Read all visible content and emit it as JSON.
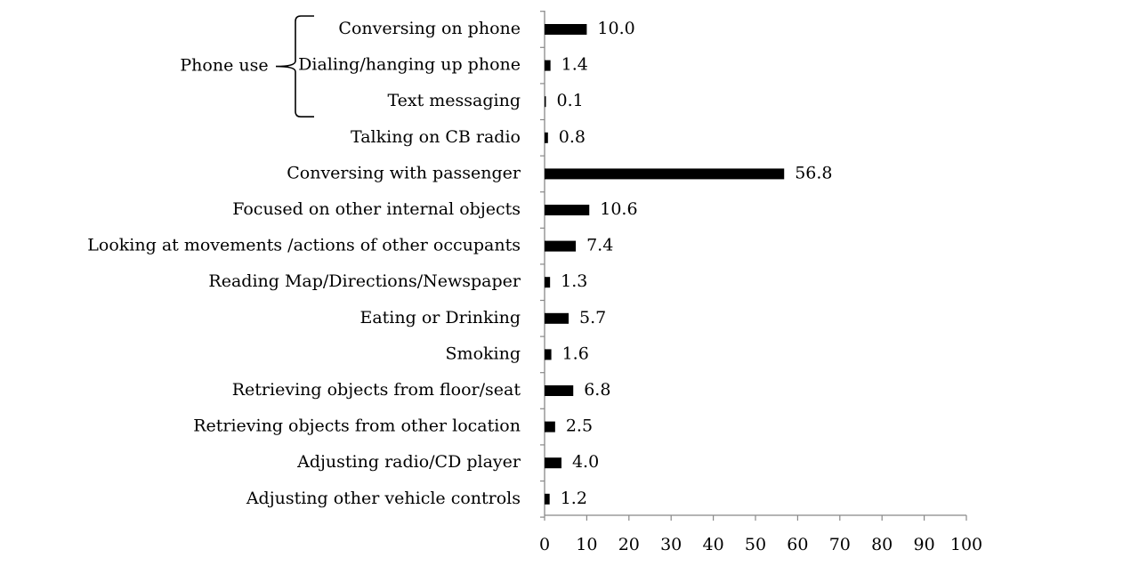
{
  "chart_data": {
    "type": "bar",
    "orientation": "horizontal",
    "categories": [
      "Conversing on phone",
      "Dialing/hanging up phone",
      "Text messaging",
      "Talking on  CB radio",
      "Conversing with passenger",
      "Focused on other internal objects",
      "Looking at movements /actions of other occupants",
      "Reading Map/Directions/Newspaper",
      "Eating or Drinking",
      "Smoking",
      "Retrieving objects from floor/seat",
      "Retrieving objects from other location",
      "Adjusting radio/CD player",
      "Adjusting other vehicle controls"
    ],
    "values": [
      10.0,
      1.4,
      0.1,
      0.8,
      56.8,
      10.6,
      7.4,
      1.3,
      5.7,
      1.6,
      6.8,
      2.5,
      4.0,
      1.2
    ],
    "value_labels": [
      "10.0",
      "1.4",
      "0.1",
      "0.8",
      "56.8",
      "10.6",
      "7.4",
      "1.3",
      "5.7",
      "1.6",
      "6.8",
      "2.5",
      "4.0",
      "1.2"
    ],
    "group_annotation": {
      "label": "Phone use",
      "categories": [
        "Conversing on phone",
        "Dialing/hanging up phone",
        "Text messaging"
      ]
    },
    "xlim": [
      0,
      100
    ],
    "xticks": [
      0,
      10,
      20,
      30,
      40,
      50,
      60,
      70,
      80,
      90,
      100
    ],
    "title": "",
    "xlabel": "",
    "ylabel": "",
    "grid": false,
    "bar_color": "#000000"
  }
}
